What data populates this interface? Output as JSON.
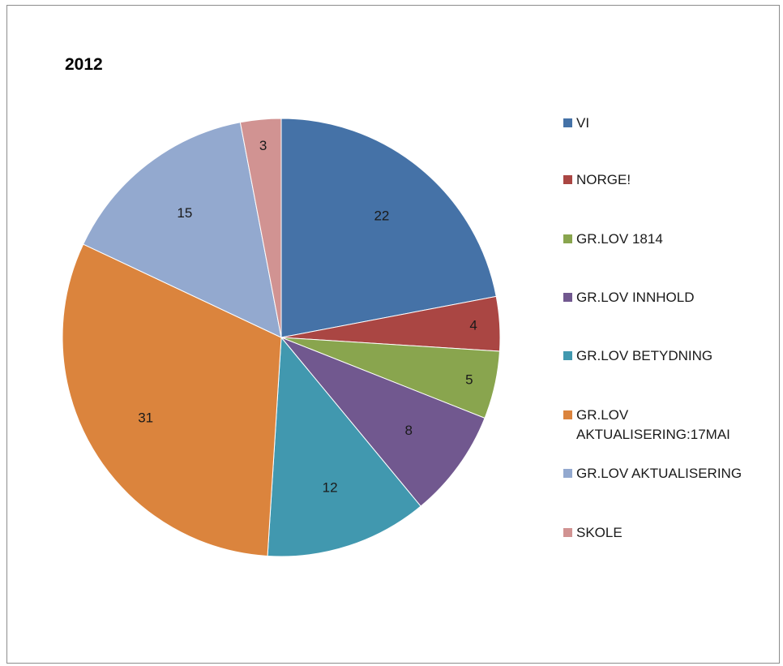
{
  "chart_data": {
    "type": "pie",
    "title": "2012",
    "categories": [
      "VI",
      "NORGE!",
      "GR.LOV 1814",
      "GR.LOV INNHOLD",
      "GR.LOV BETYDNING",
      "GR.LOV\nAKTUALISERING:17MAI",
      "GR.LOV AKTUALISERING",
      "SKOLE"
    ],
    "values": [
      22,
      4,
      5,
      8,
      12,
      31,
      15,
      3
    ],
    "colors": [
      "#4572a7",
      "#aa4643",
      "#89a54e",
      "#71588f",
      "#4198af",
      "#db843d",
      "#93a9cf",
      "#d19392"
    ],
    "data_labels": [
      "22",
      "4",
      "5",
      "8",
      "12",
      "31",
      "15",
      "3"
    ],
    "legend_position": "right",
    "start_angle_deg": 0,
    "direction": "clockwise"
  }
}
